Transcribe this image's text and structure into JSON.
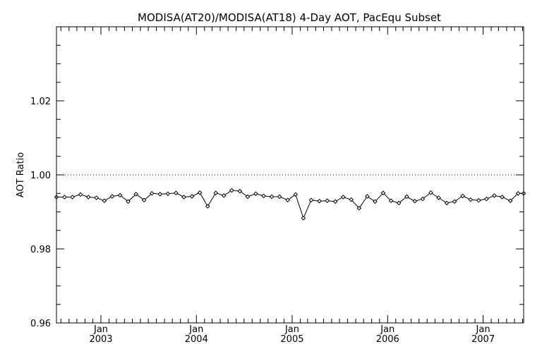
{
  "chart_data": {
    "type": "line",
    "title": "MODISA(AT20)/MODISA(AT18) 4-Day AOT, PacEqu Subset",
    "xlabel": "",
    "ylabel": "AOT Ratio",
    "ylim": [
      0.96,
      1.04
    ],
    "xlim": [
      "2002-07-15",
      "2007-06-05"
    ],
    "yticks": [
      {
        "value": 0.96,
        "label": "0.96"
      },
      {
        "value": 0.98,
        "label": "0.98"
      },
      {
        "value": 1.0,
        "label": "1.00"
      },
      {
        "value": 1.02,
        "label": "1.02"
      }
    ],
    "xticks": [
      {
        "date": "2003-01-01",
        "month": "Jan",
        "year": "2003"
      },
      {
        "date": "2004-01-01",
        "month": "Jan",
        "year": "2004"
      },
      {
        "date": "2005-01-01",
        "month": "Jan",
        "year": "2005"
      },
      {
        "date": "2006-01-01",
        "month": "Jan",
        "year": "2006"
      },
      {
        "date": "2007-01-01",
        "month": "Jan",
        "year": "2007"
      }
    ],
    "reference_line": {
      "y": 1.0,
      "style": "dotted"
    },
    "grid": false,
    "series": [
      {
        "x": [
          "2002-07-15",
          "2002-08-15",
          "2002-09-14",
          "2002-10-15",
          "2002-11-14",
          "2002-12-15",
          "2003-01-14",
          "2003-02-13",
          "2003-03-15",
          "2003-04-15",
          "2003-05-15",
          "2003-06-15",
          "2003-07-15",
          "2003-08-15",
          "2003-09-14",
          "2003-10-15",
          "2003-11-14",
          "2003-12-15",
          "2004-01-14",
          "2004-02-13",
          "2004-03-15",
          "2004-04-15",
          "2004-05-15",
          "2004-06-15",
          "2004-07-15",
          "2004-08-15",
          "2004-09-14",
          "2004-10-15",
          "2004-11-14",
          "2004-12-15",
          "2005-01-14",
          "2005-02-13",
          "2005-03-15",
          "2005-04-15",
          "2005-05-15",
          "2005-06-15",
          "2005-07-15",
          "2005-08-15",
          "2005-09-14",
          "2005-10-15",
          "2005-11-14",
          "2005-12-15",
          "2006-01-14",
          "2006-02-13",
          "2006-03-15",
          "2006-04-15",
          "2006-05-15",
          "2006-06-15",
          "2006-07-15",
          "2006-08-15",
          "2006-09-14",
          "2006-10-15",
          "2006-11-14",
          "2006-12-15",
          "2007-01-14",
          "2007-02-13",
          "2007-03-15",
          "2007-04-15",
          "2007-05-15",
          "2007-06-05"
        ],
        "y": [
          0.994,
          0.994,
          0.994,
          0.9947,
          0.994,
          0.9938,
          0.993,
          0.9942,
          0.9945,
          0.9928,
          0.9948,
          0.9932,
          0.995,
          0.9948,
          0.9949,
          0.9951,
          0.994,
          0.9942,
          0.9952,
          0.9915,
          0.9951,
          0.9944,
          0.9958,
          0.9956,
          0.9941,
          0.9949,
          0.9943,
          0.9941,
          0.9941,
          0.9932,
          0.9947,
          0.9883,
          0.9932,
          0.9929,
          0.993,
          0.9928,
          0.994,
          0.9933,
          0.991,
          0.9942,
          0.9928,
          0.9951,
          0.993,
          0.9924,
          0.9941,
          0.9929,
          0.9935,
          0.9952,
          0.9938,
          0.9924,
          0.9928,
          0.9943,
          0.9933,
          0.9931,
          0.9935,
          0.9944,
          0.994,
          0.993,
          0.995,
          0.995
        ]
      }
    ]
  }
}
